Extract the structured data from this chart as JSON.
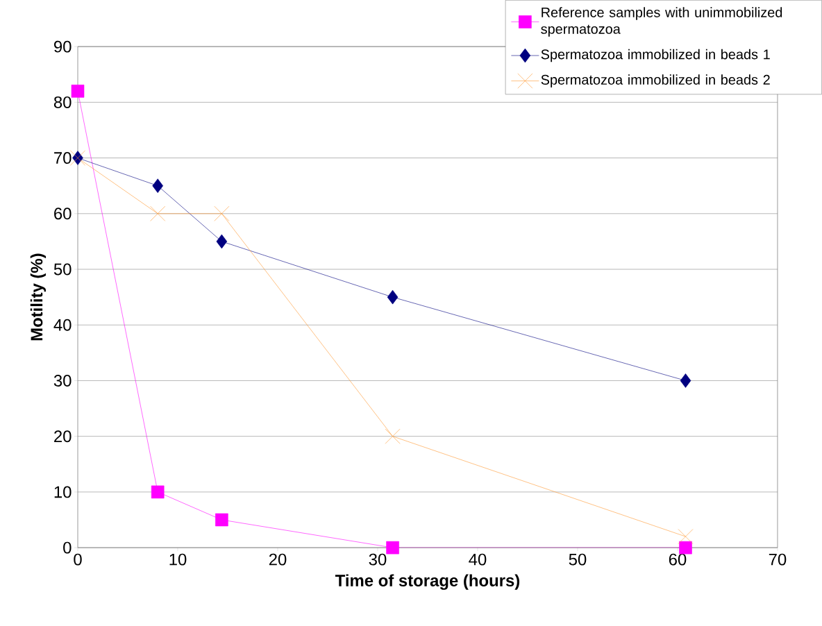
{
  "chart_data": {
    "type": "line",
    "xlabel": "Time of storage (hours)",
    "ylabel": "Motility (%)",
    "xlim": [
      0,
      70
    ],
    "xticks": [
      0,
      10,
      20,
      30,
      40,
      50,
      60,
      70
    ],
    "ylim": [
      0,
      90
    ],
    "yticks": [
      0,
      10,
      20,
      30,
      40,
      50,
      60,
      70,
      80,
      90
    ],
    "grid": "y",
    "legend": "top right",
    "series": [
      {
        "name": "Reference samples with unimmobilized spermatozoa",
        "color": "#ff00ff",
        "marker": "square",
        "x": [
          0,
          8,
          14.4,
          31.5,
          60.8
        ],
        "values": [
          82,
          10,
          5,
          0,
          0
        ]
      },
      {
        "name": "Spermatozoa immobilized in beads 1",
        "color": "#000080",
        "marker": "diamond",
        "x": [
          0,
          8,
          14.4,
          31.5,
          60.8
        ],
        "values": [
          70,
          65,
          55,
          45,
          30
        ]
      },
      {
        "name": "Spermatozoa immobilized in beads 2",
        "color": "#ff9933",
        "marker": "cross",
        "x": [
          0,
          8,
          14.4,
          31.5,
          60.8
        ],
        "values": [
          70,
          60,
          60,
          20,
          2
        ]
      }
    ]
  }
}
